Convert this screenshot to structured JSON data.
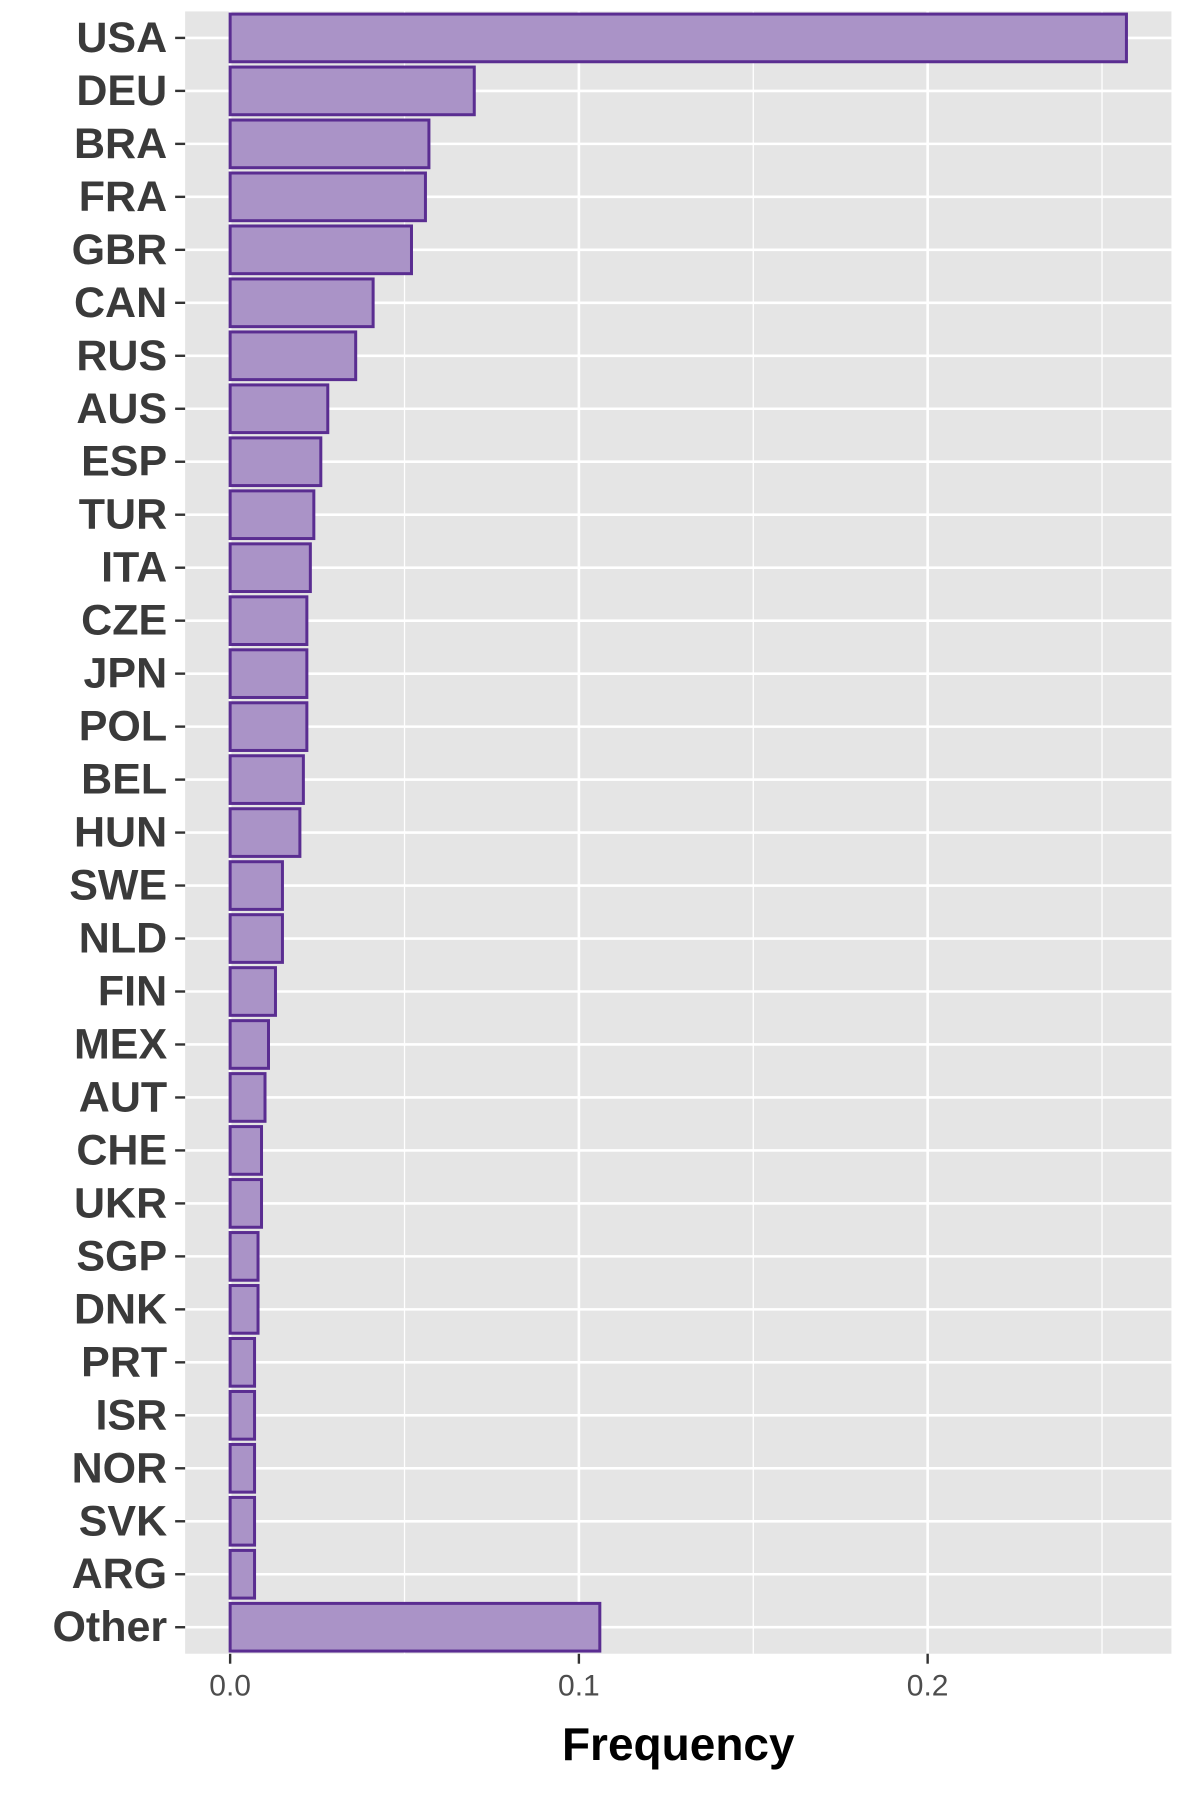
{
  "chart_data": {
    "type": "bar",
    "orientation": "horizontal",
    "categories": [
      "USA",
      "DEU",
      "BRA",
      "FRA",
      "GBR",
      "CAN",
      "RUS",
      "AUS",
      "ESP",
      "TUR",
      "ITA",
      "CZE",
      "JPN",
      "POL",
      "BEL",
      "HUN",
      "SWE",
      "NLD",
      "FIN",
      "MEX",
      "AUT",
      "CHE",
      "UKR",
      "SGP",
      "DNK",
      "PRT",
      "ISR",
      "NOR",
      "SVK",
      "ARG",
      "Other"
    ],
    "values": [
      0.257,
      0.07,
      0.057,
      0.056,
      0.052,
      0.041,
      0.036,
      0.028,
      0.026,
      0.024,
      0.023,
      0.022,
      0.022,
      0.022,
      0.021,
      0.02,
      0.015,
      0.015,
      0.013,
      0.011,
      0.01,
      0.009,
      0.009,
      0.008,
      0.008,
      0.007,
      0.007,
      0.007,
      0.007,
      0.007,
      0.106
    ],
    "title": "",
    "xlabel": "Frequency",
    "ylabel": "",
    "xlim": [
      -0.0129,
      0.2699
    ],
    "xticks": [
      0.0,
      0.1,
      0.2
    ],
    "xtick_labels": [
      "0.0",
      "0.1",
      "0.2"
    ],
    "grid": true,
    "legend": "none",
    "colors": {
      "bar_fill": "#aa93c7",
      "bar_stroke": "#5a2d91",
      "panel_bg": "#e5e5e5",
      "grid_line": "#ffffff"
    }
  }
}
